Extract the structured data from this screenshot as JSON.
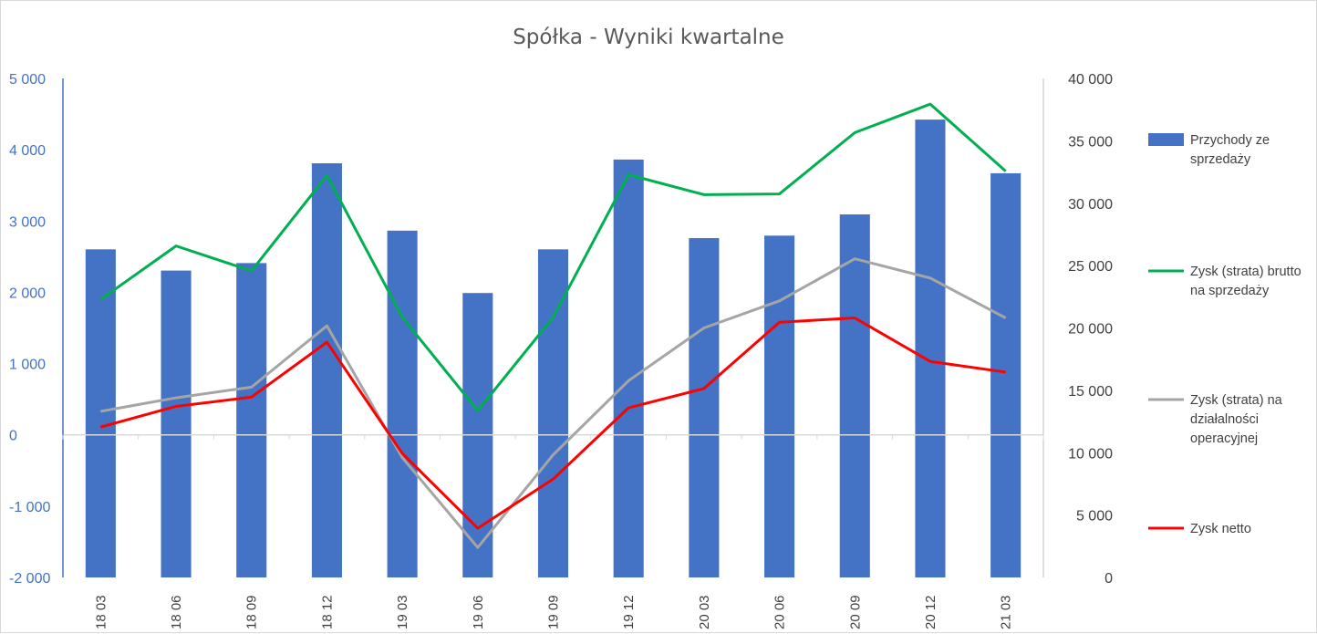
{
  "chart_data": {
    "type": "bar+line",
    "title": "Spółka - Wyniki kwartalne",
    "categories": [
      "18 03",
      "18 06",
      "18 09",
      "18 12",
      "19 03",
      "19 06",
      "19 09",
      "19 12",
      "20 03",
      "20 06",
      "20 09",
      "20 12",
      "21 03"
    ],
    "left_axis": {
      "ylim": [
        -2000,
        5000
      ],
      "ticks": [
        -2000,
        -1000,
        0,
        1000,
        2000,
        3000,
        4000,
        5000
      ],
      "tick_labels": [
        "-2 000",
        "-1 000",
        "0",
        "1 000",
        "2 000",
        "3 000",
        "4 000",
        "5 000"
      ],
      "color": "#4472c4"
    },
    "right_axis": {
      "ylim": [
        0,
        40000
      ],
      "ticks": [
        0,
        5000,
        10000,
        15000,
        20000,
        25000,
        30000,
        35000,
        40000
      ],
      "tick_labels": [
        "0",
        "5 000",
        "10 000",
        "15 000",
        "20 000",
        "25 000",
        "30 000",
        "35 000",
        "40 000"
      ]
    },
    "series": [
      {
        "name": "Przychody ze sprzedaży",
        "legend_lines": [
          "Przychody ze",
          "sprzedaży"
        ],
        "type": "bar",
        "axis": "right",
        "color": "#4472c4",
        "values": [
          26300,
          24600,
          25200,
          33200,
          27800,
          22800,
          26300,
          33500,
          27200,
          27400,
          29100,
          36700,
          32400
        ]
      },
      {
        "name": "Zysk (strata) brutto na sprzedaży",
        "legend_lines": [
          "Zysk (strata) brutto",
          "na sprzedaży"
        ],
        "type": "line",
        "axis": "left",
        "color": "#00b050",
        "values": [
          1900,
          2650,
          2300,
          3640,
          1650,
          340,
          1650,
          3650,
          3370,
          3380,
          4240,
          4640,
          3700
        ]
      },
      {
        "name": "Zysk (strata) na działalności operacyjnej",
        "legend_lines": [
          "Zysk (strata) na",
          "działalności",
          "operacyjnej"
        ],
        "type": "line",
        "axis": "left",
        "color": "#a5a5a5",
        "values": [
          330,
          520,
          670,
          1530,
          -320,
          -1580,
          -280,
          760,
          1500,
          1880,
          2470,
          2200,
          1640
        ]
      },
      {
        "name": "Zysk netto",
        "legend_lines": [
          "Zysk netto"
        ],
        "type": "line",
        "axis": "left",
        "color": "#ff0000",
        "values": [
          110,
          400,
          530,
          1300,
          -260,
          -1310,
          -620,
          380,
          650,
          1580,
          1640,
          1030,
          880
        ]
      }
    ],
    "grid": false,
    "legend_position": "right"
  }
}
